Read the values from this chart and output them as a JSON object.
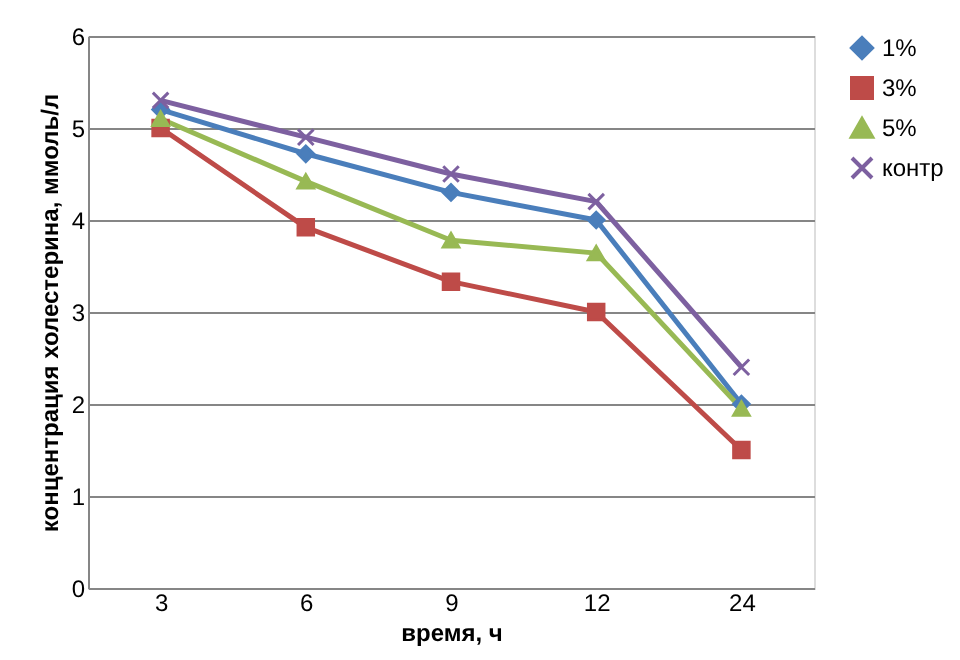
{
  "chart_data": {
    "type": "line",
    "xlabel": "время, ч",
    "ylabel": "концентрация холестерина, ммоль/л",
    "categories": [
      "3",
      "6",
      "9",
      "12",
      "24"
    ],
    "ylim": [
      0,
      6
    ],
    "yticks": [
      0,
      1,
      2,
      3,
      4,
      5,
      6
    ],
    "grid": "y",
    "legend": "right",
    "line_style": "solid",
    "series": [
      {
        "name": "1%",
        "color": "#4a7ebb",
        "marker": "diamond",
        "values": [
          5.2,
          4.72,
          4.3,
          4.0,
          2.0
        ]
      },
      {
        "name": "3%",
        "color": "#be4b48",
        "marker": "square",
        "values": [
          5.0,
          3.92,
          3.33,
          3.0,
          1.5
        ]
      },
      {
        "name": "5%",
        "color": "#98b954",
        "marker": "triangle",
        "values": [
          5.1,
          4.42,
          3.78,
          3.64,
          1.95
        ]
      },
      {
        "name": "контр",
        "color": "#7d60a0",
        "marker": "cross",
        "values": [
          5.3,
          4.9,
          4.5,
          4.2,
          2.4
        ]
      }
    ]
  }
}
